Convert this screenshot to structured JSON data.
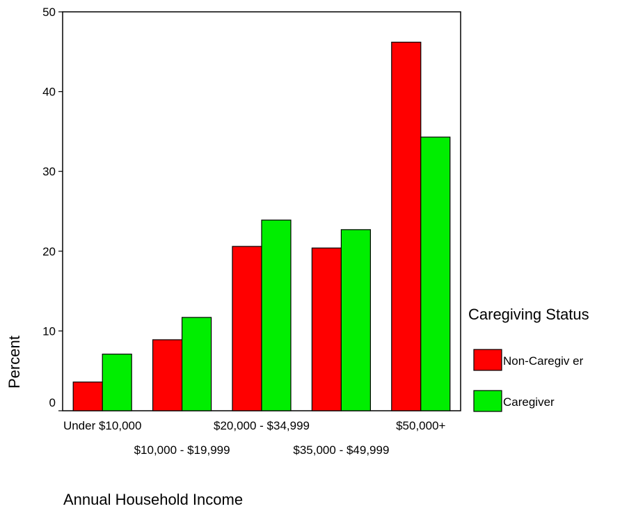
{
  "chart_data": {
    "type": "bar",
    "categories": [
      "Under $10,000",
      "$10,000 - $19,999",
      "$20,000 - $34,999",
      "$35,000 - $49,999",
      "$50,000+"
    ],
    "series": [
      {
        "name": "Non-Caregiv er",
        "color": "#ff0000",
        "values": [
          3.6,
          8.9,
          20.6,
          20.4,
          46.2
        ]
      },
      {
        "name": "Caregiver",
        "color": "#00ee00",
        "values": [
          7.1,
          11.7,
          23.9,
          22.7,
          34.3
        ]
      }
    ],
    "xlabel": "Annual Household Income",
    "ylabel": "Percent",
    "ylim": [
      0,
      50
    ],
    "yticks": [
      "0",
      "10",
      "20",
      "30",
      "40",
      "50"
    ],
    "legend_title": "Caregiving Status",
    "legend_position": "right",
    "grid": false
  }
}
